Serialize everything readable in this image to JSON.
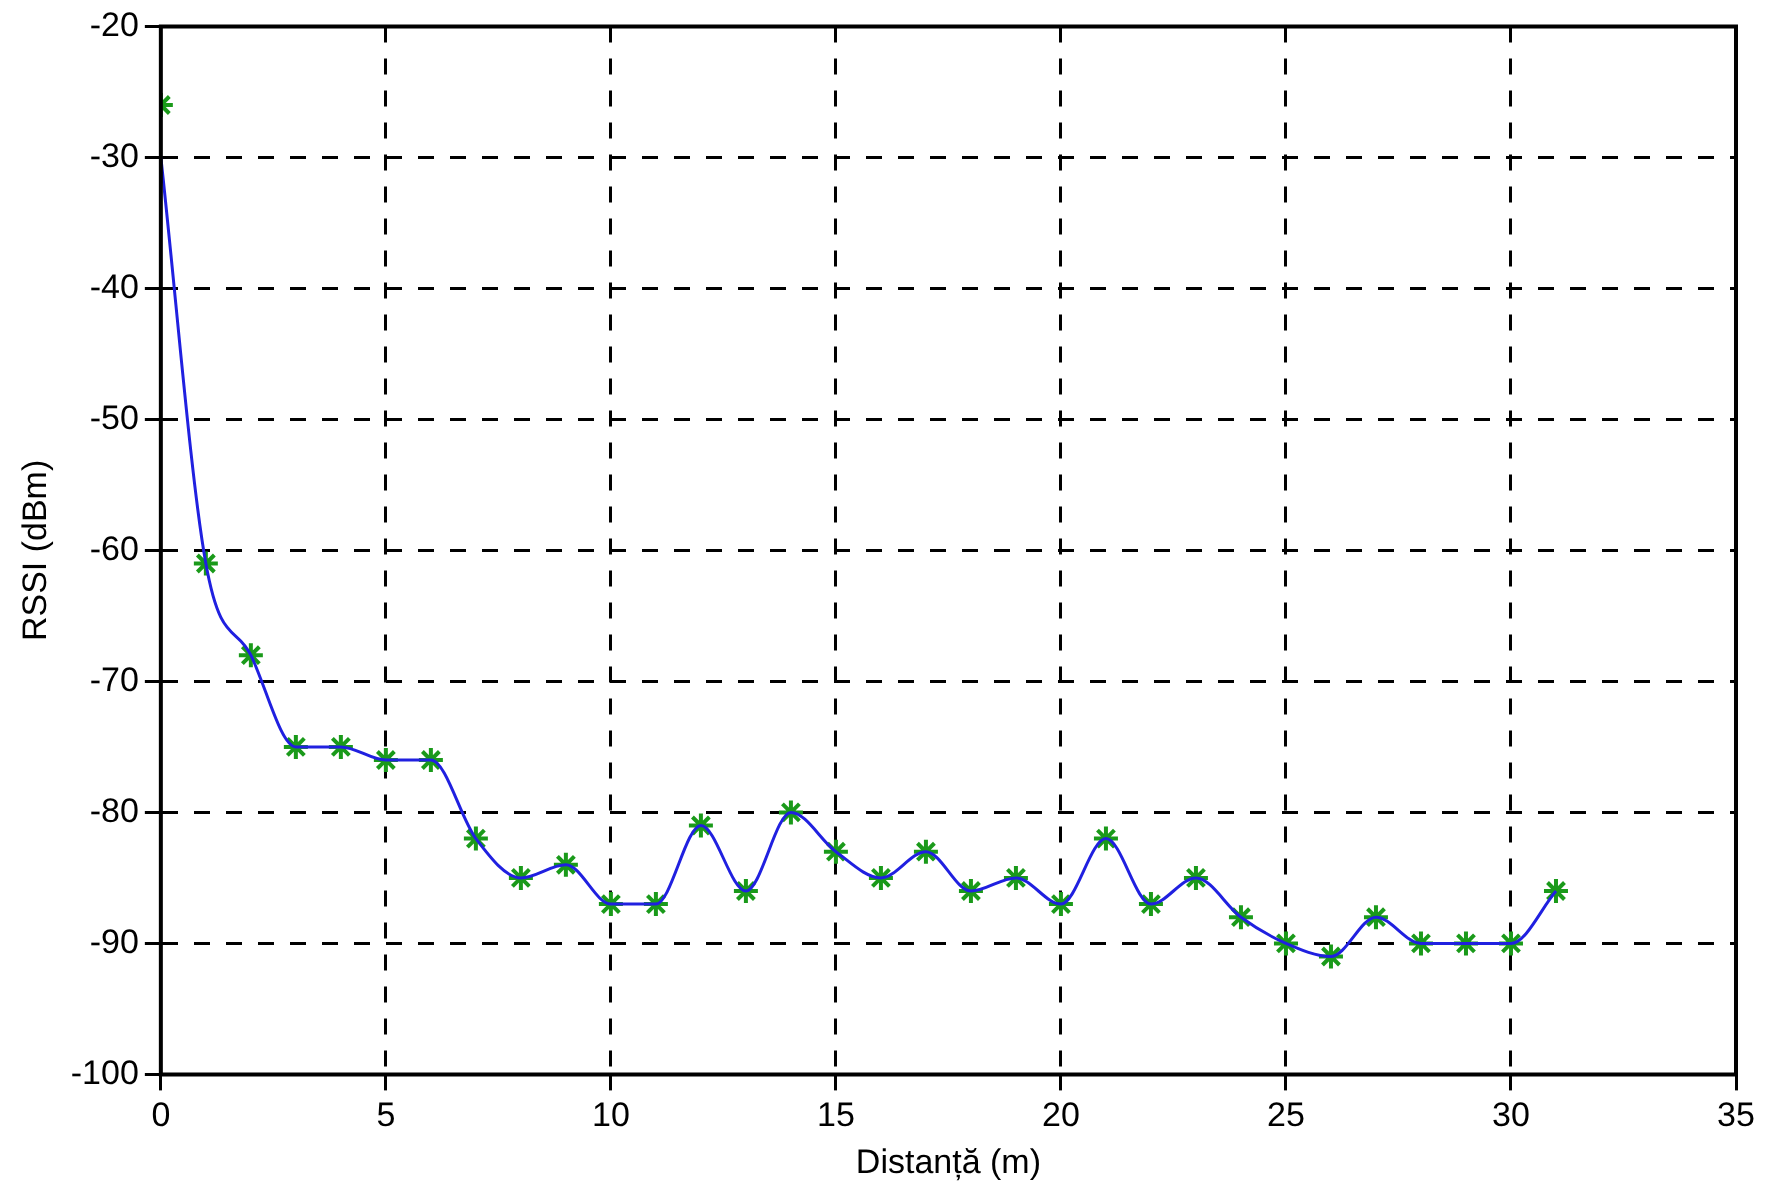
{
  "chart_data": {
    "type": "line",
    "xlabel": "Distanță (m)",
    "ylabel": "RSSI (dBm)",
    "xlim": [
      0,
      35
    ],
    "xticks": [
      0,
      5,
      10,
      15,
      20,
      25,
      30,
      35
    ],
    "ylim": [
      -100,
      -20
    ],
    "yticks": [
      -100,
      -90,
      -80,
      -70,
      -60,
      -50,
      -40,
      -30,
      -20
    ],
    "grid": true,
    "legend": false,
    "series": [
      {
        "type": "line",
        "color": "#2020e0",
        "marker": "none",
        "x": [
          0,
          1,
          2,
          3,
          4,
          5,
          6,
          7,
          8,
          9,
          10,
          11,
          12,
          13,
          14,
          15,
          16,
          17,
          18,
          19,
          20,
          21,
          22,
          23,
          24,
          25,
          26,
          27,
          28,
          29,
          30,
          31
        ],
        "values": [
          -30,
          -61,
          -68,
          -75,
          -75,
          -76,
          -76,
          -82,
          -85,
          -84,
          -87,
          -87,
          -81,
          -86,
          -80,
          -83,
          -85,
          -83,
          -86,
          -85,
          -87,
          -82,
          -87,
          -85,
          -88,
          -90,
          -91,
          -88,
          -90,
          -90,
          -90,
          -86
        ]
      },
      {
        "type": "scatter",
        "color": "#1a9a1a",
        "marker": "cross",
        "x": [
          0,
          1,
          2,
          3,
          4,
          5,
          6,
          7,
          8,
          9,
          10,
          11,
          12,
          13,
          14,
          15,
          16,
          17,
          18,
          19,
          20,
          21,
          22,
          23,
          24,
          25,
          26,
          27,
          28,
          29,
          30,
          31
        ],
        "values": [
          -26,
          -61,
          -68,
          -75,
          -75,
          -76,
          -76,
          -82,
          -85,
          -84,
          -87,
          -87,
          -81,
          -86,
          -80,
          -83,
          -85,
          -83,
          -86,
          -85,
          -87,
          -82,
          -87,
          -85,
          -88,
          -90,
          -91,
          -88,
          -90,
          -90,
          -90,
          -86
        ]
      }
    ]
  }
}
